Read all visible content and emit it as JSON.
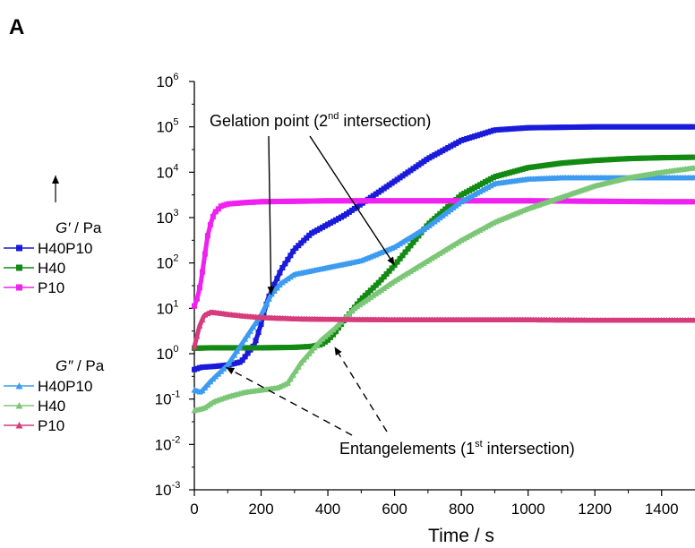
{
  "panel_label": "A",
  "chart_data": {
    "type": "line",
    "xlabel": "Time / s",
    "ylabel": "",
    "xlim": [
      0,
      1500
    ],
    "ylim_log10": [
      -3,
      6
    ],
    "y_scale": "log",
    "x_ticks": [
      "0",
      "200",
      "400",
      "600",
      "800",
      "1000",
      "1200",
      "1400"
    ],
    "x_tick_values": [
      0,
      200,
      400,
      600,
      800,
      1000,
      1200,
      1400
    ],
    "y_ticks": [
      {
        "base": "10",
        "exp": "-3"
      },
      {
        "base": "10",
        "exp": "-2"
      },
      {
        "base": "10",
        "exp": "-1"
      },
      {
        "base": "10",
        "exp": "0"
      },
      {
        "base": "10",
        "exp": "1"
      },
      {
        "base": "10",
        "exp": "2"
      },
      {
        "base": "10",
        "exp": "3"
      },
      {
        "base": "10",
        "exp": "4"
      },
      {
        "base": "10",
        "exp": "5"
      },
      {
        "base": "10",
        "exp": "6"
      }
    ],
    "legend": {
      "placement": "left",
      "group1_title": "G′ / Pa",
      "group2_title": "G″ / Pa",
      "group1": [
        "H40P10",
        "H40",
        "P10"
      ],
      "group2": [
        "H40P10",
        "H40",
        "P10"
      ]
    },
    "series": [
      {
        "name": "H40P10",
        "modulus": "G′",
        "color": "#1a1adb",
        "marker": "square",
        "x": [
          0,
          20,
          60,
          100,
          140,
          180,
          200,
          220,
          260,
          300,
          350,
          400,
          450,
          500,
          600,
          700,
          800,
          900,
          1000,
          1100,
          1200,
          1300,
          1400,
          1500
        ],
        "logy": [
          -0.35,
          -0.3,
          -0.28,
          -0.25,
          -0.18,
          0.2,
          0.65,
          1.2,
          1.85,
          2.3,
          2.65,
          2.85,
          3.05,
          3.3,
          3.8,
          4.3,
          4.7,
          4.93,
          4.98,
          4.99,
          5.0,
          5.0,
          5.0,
          5.0
        ]
      },
      {
        "name": "H40",
        "modulus": "G′",
        "color": "#138a13",
        "marker": "square",
        "x": [
          0,
          50,
          100,
          200,
          300,
          350,
          380,
          400,
          420,
          450,
          500,
          550,
          600,
          700,
          800,
          900,
          1000,
          1100,
          1200,
          1300,
          1400,
          1500
        ],
        "logy": [
          0.12,
          0.13,
          0.13,
          0.13,
          0.14,
          0.16,
          0.2,
          0.3,
          0.45,
          0.75,
          1.2,
          1.55,
          1.95,
          2.85,
          3.5,
          3.9,
          4.1,
          4.2,
          4.26,
          4.3,
          4.32,
          4.33
        ]
      },
      {
        "name": "P10",
        "modulus": "G′",
        "color": "#f020f0",
        "marker": "square",
        "x": [
          0,
          10,
          20,
          30,
          40,
          50,
          60,
          80,
          100,
          150,
          200,
          300,
          400,
          600,
          800,
          1000,
          1200,
          1400,
          1500
        ],
        "logy": [
          1.05,
          1.25,
          1.6,
          2.1,
          2.6,
          2.9,
          3.1,
          3.25,
          3.3,
          3.33,
          3.35,
          3.36,
          3.37,
          3.37,
          3.37,
          3.37,
          3.36,
          3.35,
          3.35
        ]
      },
      {
        "name": "H40P10",
        "modulus": "G″",
        "color": "#3d9bf0",
        "marker": "triangle",
        "x": [
          0,
          20,
          50,
          100,
          150,
          200,
          230,
          260,
          300,
          400,
          500,
          600,
          700,
          800,
          900,
          1000,
          1100,
          1200,
          1300,
          1400,
          1500
        ],
        "logy": [
          -0.8,
          -0.85,
          -0.6,
          -0.25,
          0.3,
          0.85,
          1.3,
          1.55,
          1.75,
          1.9,
          2.05,
          2.35,
          2.8,
          3.35,
          3.75,
          3.85,
          3.88,
          3.88,
          3.88,
          3.88,
          3.88
        ]
      },
      {
        "name": "H40",
        "modulus": "G″",
        "color": "#7cc777",
        "marker": "triangle",
        "x": [
          0,
          30,
          60,
          100,
          150,
          200,
          250,
          280,
          320,
          380,
          420,
          480,
          540,
          600,
          700,
          800,
          900,
          1000,
          1100,
          1200,
          1300,
          1400,
          1500
        ],
        "logy": [
          -1.25,
          -1.2,
          -1.05,
          -0.95,
          -0.85,
          -0.8,
          -0.75,
          -0.65,
          -0.2,
          0.3,
          0.55,
          1.0,
          1.3,
          1.6,
          2.05,
          2.5,
          2.9,
          3.2,
          3.45,
          3.7,
          3.88,
          4.0,
          4.1
        ]
      },
      {
        "name": "P10",
        "modulus": "G″",
        "color": "#d63c7c",
        "marker": "triangle",
        "x": [
          0,
          15,
          30,
          50,
          70,
          100,
          150,
          200,
          300,
          400,
          600,
          800,
          1000,
          1200,
          1400,
          1500
        ],
        "logy": [
          0.15,
          0.6,
          0.85,
          0.92,
          0.9,
          0.87,
          0.83,
          0.8,
          0.77,
          0.76,
          0.75,
          0.75,
          0.75,
          0.74,
          0.74,
          0.74
        ]
      }
    ],
    "annotations": [
      {
        "id": "gelation",
        "text": "Gelation point (2",
        "sup": "nd",
        "text_after": " intersection)",
        "arrow_targets": [
          {
            "x": 230,
            "logy": 1.3
          },
          {
            "x": 600,
            "logy": 1.95
          }
        ]
      },
      {
        "id": "entanglement",
        "text": "Entangelements (1",
        "sup": "st",
        "text_after": " intersection)",
        "arrow_targets": [
          {
            "x": 95,
            "logy": -0.3
          },
          {
            "x": 420,
            "logy": 0.15
          }
        ]
      }
    ]
  }
}
